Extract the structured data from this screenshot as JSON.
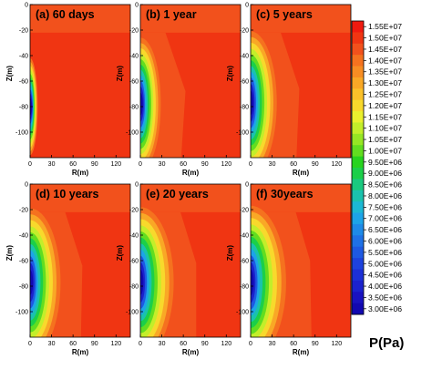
{
  "chart_data": {
    "type": "heatmap",
    "quantity": "P(Pa)",
    "xlabel": "R(m)",
    "ylabel": "Z(m)",
    "xlim": [
      0,
      140
    ],
    "ylim": [
      -120,
      0
    ],
    "x_ticks": [
      "0",
      "30",
      "60",
      "90",
      "120"
    ],
    "y_ticks": [
      "0",
      "-20",
      "-40",
      "-60",
      "-80",
      "-100"
    ],
    "legend_position": "right",
    "panels": [
      {
        "label": "(a) 60 days",
        "stage": 0
      },
      {
        "label": "(b) 1 year",
        "stage": 1
      },
      {
        "label": "(c) 5 years",
        "stage": 2
      },
      {
        "label": "(d) 10 years",
        "stage": 3
      },
      {
        "label": "(e) 20 years",
        "stage": 4
      },
      {
        "label": "(f) 30years",
        "stage": 5
      }
    ],
    "colorbar": {
      "title": "P(Pa)",
      "levels": [
        "1.55E+07",
        "1.50E+07",
        "1.45E+07",
        "1.40E+07",
        "1.35E+07",
        "1.30E+07",
        "1.25E+07",
        "1.20E+07",
        "1.15E+07",
        "1.10E+07",
        "1.05E+07",
        "1.00E+07",
        "9.50E+06",
        "9.00E+06",
        "8.50E+06",
        "8.00E+06",
        "7.50E+06",
        "7.00E+06",
        "6.50E+06",
        "6.00E+06",
        "5.50E+06",
        "5.00E+06",
        "4.50E+06",
        "4.00E+06",
        "3.50E+06",
        "3.00E+06"
      ],
      "colors": [
        "#f01a0f",
        "#f03512",
        "#f2511c",
        "#f5721f",
        "#f78d23",
        "#f9a826",
        "#fbc12a",
        "#f8d92c",
        "#eaf02e",
        "#c3ee2a",
        "#96e624",
        "#62dd20",
        "#27d31e",
        "#1bcf49",
        "#1ac97f",
        "#1ac2ad",
        "#1cb8d4",
        "#1da4e8",
        "#1e8ae8",
        "#1f71e6",
        "#1e59e2",
        "#1d42dd",
        "#1c30d6",
        "#1b22cc",
        "#1912bf",
        "#1208b0"
      ]
    }
  }
}
